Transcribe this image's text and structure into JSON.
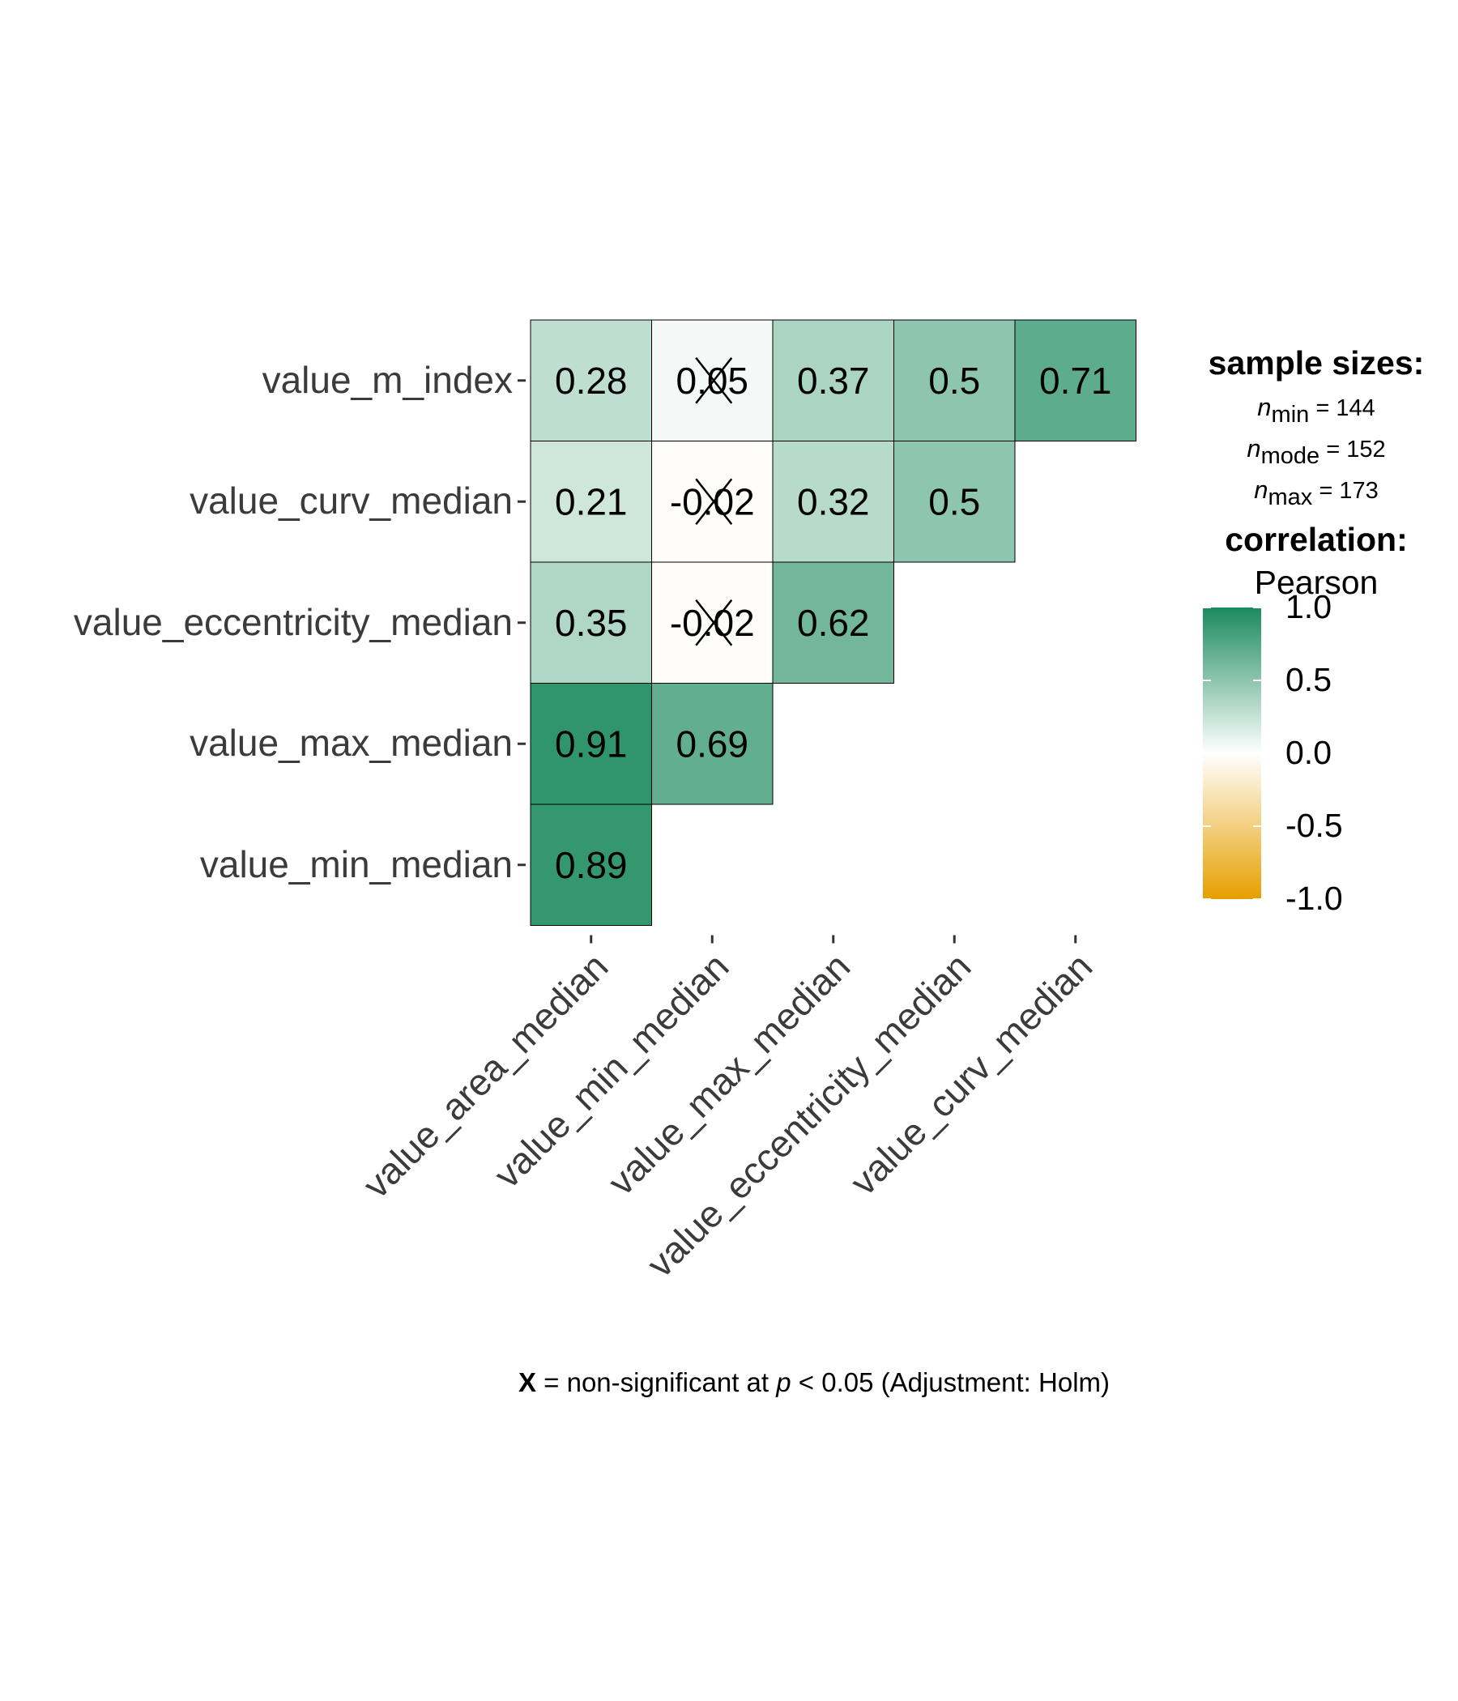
{
  "chart_data": {
    "type": "heatmap",
    "rows": [
      "value_m_index",
      "value_curv_median",
      "value_eccentricity_median",
      "value_max_median",
      "value_min_median"
    ],
    "columns": [
      "value_area_median",
      "value_min_median",
      "value_max_median",
      "value_eccentricity_median",
      "value_curv_median"
    ],
    "cells": [
      {
        "row": "value_m_index",
        "col": "value_area_median",
        "value": 0.28,
        "label": "0.28",
        "significant": true
      },
      {
        "row": "value_m_index",
        "col": "value_min_median",
        "value": 0.05,
        "label": "0.05",
        "significant": false
      },
      {
        "row": "value_m_index",
        "col": "value_max_median",
        "value": 0.37,
        "label": "0.37",
        "significant": true
      },
      {
        "row": "value_m_index",
        "col": "value_eccentricity_median",
        "value": 0.5,
        "label": "0.5",
        "significant": true
      },
      {
        "row": "value_m_index",
        "col": "value_curv_median",
        "value": 0.71,
        "label": "0.71",
        "significant": true
      },
      {
        "row": "value_curv_median",
        "col": "value_area_median",
        "value": 0.21,
        "label": "0.21",
        "significant": true
      },
      {
        "row": "value_curv_median",
        "col": "value_min_median",
        "value": -0.02,
        "label": "-0.02",
        "significant": false
      },
      {
        "row": "value_curv_median",
        "col": "value_max_median",
        "value": 0.32,
        "label": "0.32",
        "significant": true
      },
      {
        "row": "value_curv_median",
        "col": "value_eccentricity_median",
        "value": 0.5,
        "label": "0.5",
        "significant": true
      },
      {
        "row": "value_eccentricity_median",
        "col": "value_area_median",
        "value": 0.35,
        "label": "0.35",
        "significant": true
      },
      {
        "row": "value_eccentricity_median",
        "col": "value_min_median",
        "value": -0.02,
        "label": "-0.02",
        "significant": false
      },
      {
        "row": "value_eccentricity_median",
        "col": "value_max_median",
        "value": 0.62,
        "label": "0.62",
        "significant": true
      },
      {
        "row": "value_max_median",
        "col": "value_area_median",
        "value": 0.91,
        "label": "0.91",
        "significant": true
      },
      {
        "row": "value_max_median",
        "col": "value_min_median",
        "value": 0.69,
        "label": "0.69",
        "significant": true
      },
      {
        "row": "value_min_median",
        "col": "value_area_median",
        "value": 0.89,
        "label": "0.89",
        "significant": true
      }
    ],
    "color_scale": {
      "low": "#E69F00",
      "mid": "#FFFFFF",
      "high": "#1B8A5E",
      "limits": [
        -1,
        1
      ]
    },
    "legend": {
      "position": "right",
      "sample_title": "sample sizes:",
      "n_min": "= 144",
      "n_mode": "= 152",
      "n_max": "= 173",
      "n_min_sub": "min",
      "n_mode_sub": "mode",
      "n_max_sub": "max",
      "n_symbol": "n",
      "corr_title": "correlation:",
      "corr_method": "Pearson",
      "ticks": [
        "1.0",
        "0.5",
        "0.0",
        "-0.5",
        "-1.0"
      ]
    },
    "caption": {
      "symbol": "X",
      "text_before_p": " = non-significant at ",
      "p": "p",
      "text_after_p": " < 0.05 (Adjustment: Holm)"
    },
    "grid": false
  }
}
